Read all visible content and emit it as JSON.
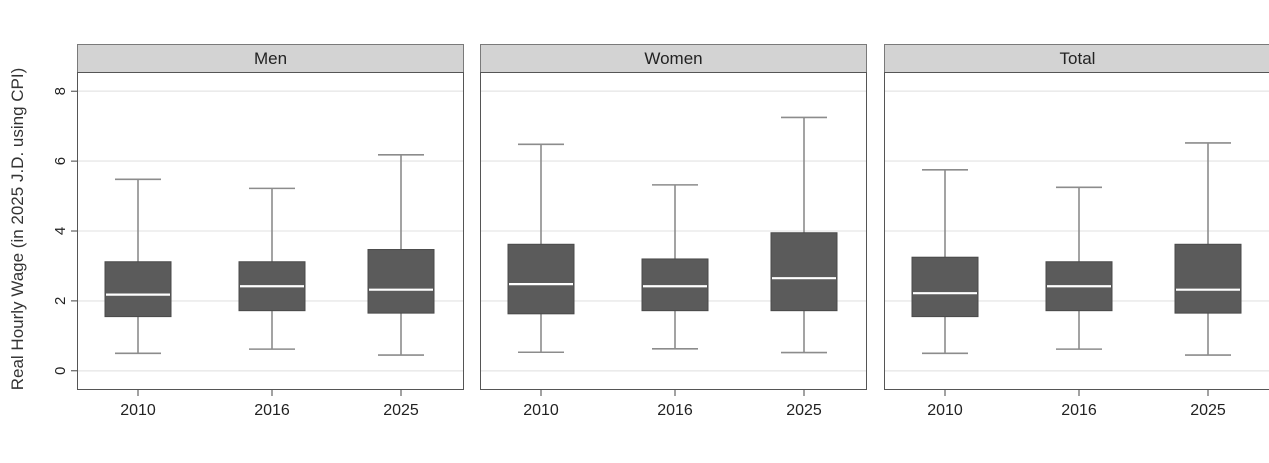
{
  "chart_data": {
    "type": "box",
    "ylabel": "Real Hourly Wage (in 2025 J.D. using CPI)",
    "ylim": [
      -0.55,
      8.55
    ],
    "yticks": [
      0,
      2,
      4,
      6,
      8
    ],
    "grid": true,
    "categories": [
      "2010",
      "2016",
      "2025"
    ],
    "colors": {
      "box": "#5b5b5b",
      "median": "#ffffff",
      "whisker": "#8c8c8c",
      "strip": "#d3d3d3",
      "grid": "#ebebeb"
    },
    "panels": [
      {
        "title": "Men",
        "boxes": [
          {
            "category": "2010",
            "whisker_low": 0.5,
            "q1": 1.55,
            "median": 2.18,
            "q3": 3.12,
            "whisker_high": 5.48
          },
          {
            "category": "2016",
            "whisker_low": 0.62,
            "q1": 1.72,
            "median": 2.42,
            "q3": 3.12,
            "whisker_high": 5.22
          },
          {
            "category": "2025",
            "whisker_low": 0.45,
            "q1": 1.65,
            "median": 2.32,
            "q3": 3.47,
            "whisker_high": 6.18
          }
        ]
      },
      {
        "title": "Women",
        "boxes": [
          {
            "category": "2010",
            "whisker_low": 0.53,
            "q1": 1.63,
            "median": 2.48,
            "q3": 3.62,
            "whisker_high": 6.48
          },
          {
            "category": "2016",
            "whisker_low": 0.63,
            "q1": 1.72,
            "median": 2.42,
            "q3": 3.2,
            "whisker_high": 5.32
          },
          {
            "category": "2025",
            "whisker_low": 0.52,
            "q1": 1.72,
            "median": 2.65,
            "q3": 3.95,
            "whisker_high": 7.25
          }
        ]
      },
      {
        "title": "Total",
        "boxes": [
          {
            "category": "2010",
            "whisker_low": 0.5,
            "q1": 1.55,
            "median": 2.22,
            "q3": 3.25,
            "whisker_high": 5.75
          },
          {
            "category": "2016",
            "whisker_low": 0.62,
            "q1": 1.72,
            "median": 2.42,
            "q3": 3.12,
            "whisker_high": 5.25
          },
          {
            "category": "2025",
            "whisker_low": 0.45,
            "q1": 1.65,
            "median": 2.32,
            "q3": 3.62,
            "whisker_high": 6.52
          }
        ]
      }
    ]
  }
}
